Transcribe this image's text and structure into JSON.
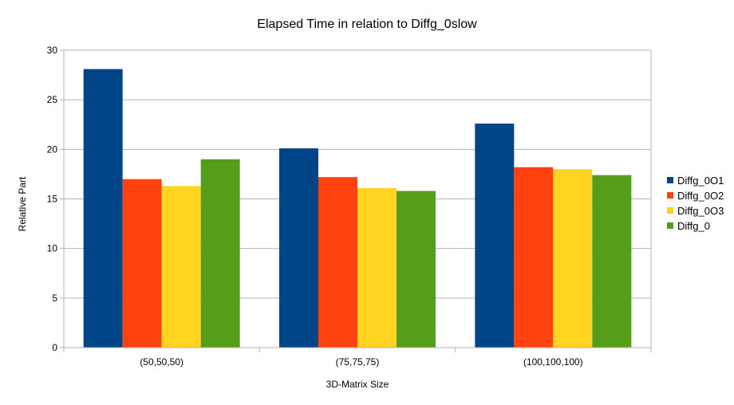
{
  "chart_data": {
    "type": "bar",
    "title": "Elapsed Time in relation to Diffg_0slow",
    "xlabel": "3D-Matrix Size",
    "ylabel": "Relative Part",
    "categories": [
      "(50,50,50)",
      "(75,75,75)",
      "(100,100,100)"
    ],
    "ylim": [
      0,
      30
    ],
    "yticks": [
      0,
      5,
      10,
      15,
      20,
      25,
      30
    ],
    "grid": true,
    "legend_position": "right",
    "series": [
      {
        "name": "Diffg_0O1",
        "color": "#004586",
        "values": [
          28.1,
          20.1,
          22.6
        ]
      },
      {
        "name": "Diffg_0O2",
        "color": "#ff420e",
        "values": [
          17.0,
          17.2,
          18.2
        ]
      },
      {
        "name": "Diffg_0O3",
        "color": "#ffd320",
        "values": [
          16.3,
          16.1,
          18.0
        ]
      },
      {
        "name": "Diffg_0",
        "color": "#579d1c",
        "values": [
          19.0,
          15.8,
          17.4
        ]
      }
    ]
  }
}
